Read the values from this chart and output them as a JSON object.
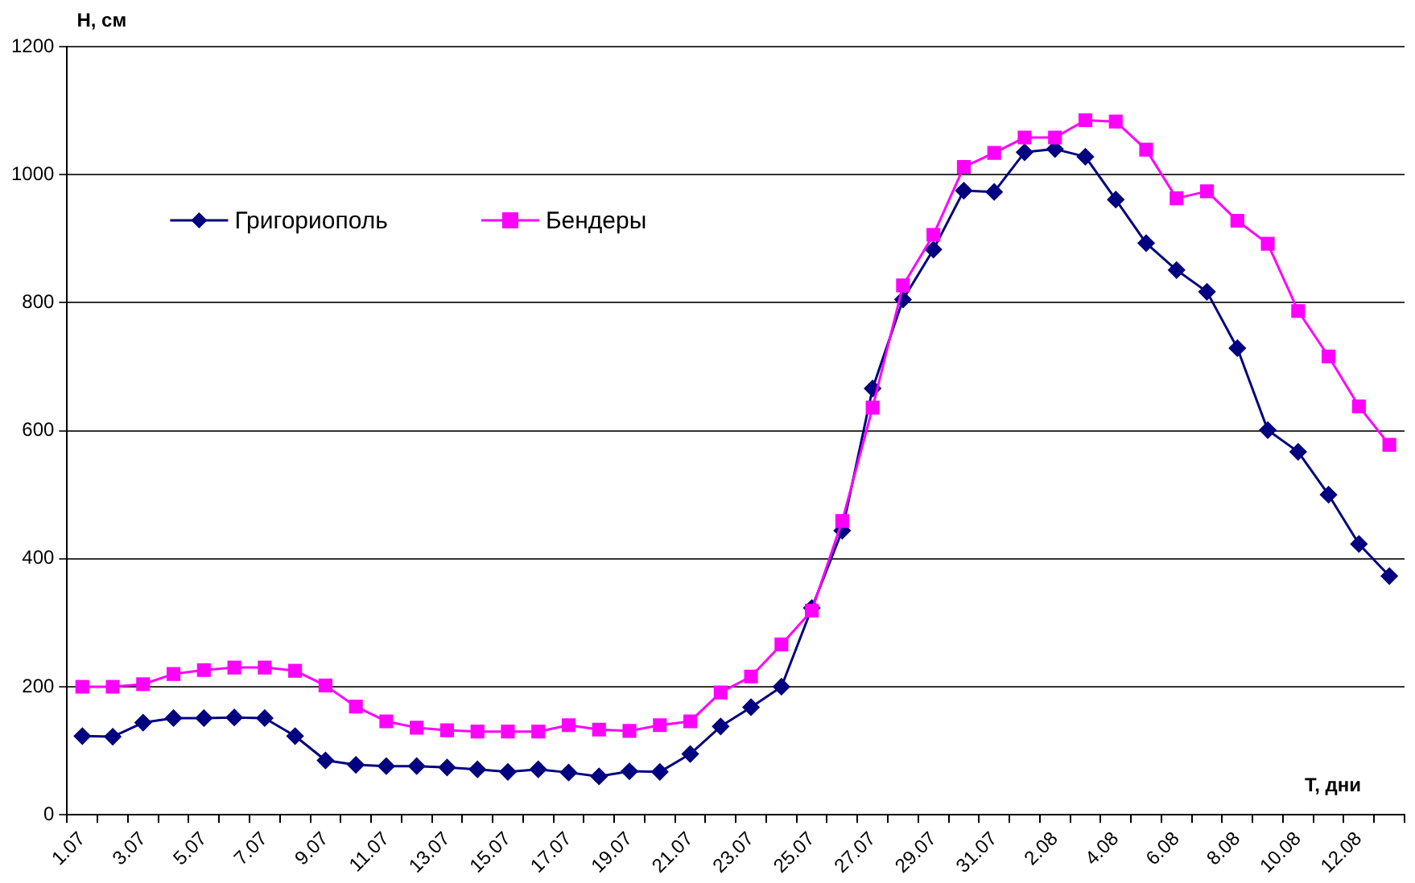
{
  "chart_data": {
    "type": "line",
    "xlabel": "Т, дни",
    "ylabel": "Н, см",
    "categories": [
      "1.07",
      null,
      "3.07",
      null,
      "5.07",
      null,
      "7.07",
      null,
      "9.07",
      null,
      "11.07",
      null,
      "13.07",
      null,
      "15.07",
      null,
      "17.07",
      null,
      "19.07",
      null,
      "21.07",
      null,
      "23.07",
      null,
      "25.07",
      null,
      "27.07",
      null,
      "29.07",
      null,
      "31.07",
      null,
      "2.08",
      null,
      "4.08",
      null,
      "6.08",
      null,
      "8.08",
      null,
      "10.08",
      null,
      "12.08",
      null
    ],
    "series": [
      {
        "name": "Григориополь",
        "color": "#000080",
        "marker": "diamond",
        "values": [
          123,
          122,
          144,
          151,
          151,
          152,
          151,
          123,
          85,
          78,
          76,
          76,
          74,
          71,
          67,
          71,
          66,
          60,
          68,
          67,
          95,
          138,
          168,
          200,
          323,
          444,
          666,
          805,
          883,
          975,
          973,
          1035,
          1040,
          1028,
          961,
          893,
          851,
          817,
          729,
          601,
          567,
          500,
          423,
          373
        ]
      },
      {
        "name": "Бендеры",
        "color": "#ff00ff",
        "marker": "square",
        "values": [
          200,
          200,
          204,
          220,
          226,
          230,
          230,
          225,
          202,
          169,
          146,
          136,
          132,
          130,
          130,
          130,
          140,
          133,
          131,
          140,
          146,
          191,
          216,
          266,
          319,
          459,
          636,
          827,
          906,
          1012,
          1034,
          1058,
          1058,
          1085,
          1083,
          1039,
          963,
          974,
          928,
          892,
          787,
          716,
          638,
          578
        ]
      }
    ],
    "ylim": [
      0,
      1200
    ],
    "yticks": [
      0,
      200,
      400,
      600,
      800,
      1000,
      1200
    ],
    "grid": "y",
    "legend": "top left",
    "line_style": "solid"
  }
}
